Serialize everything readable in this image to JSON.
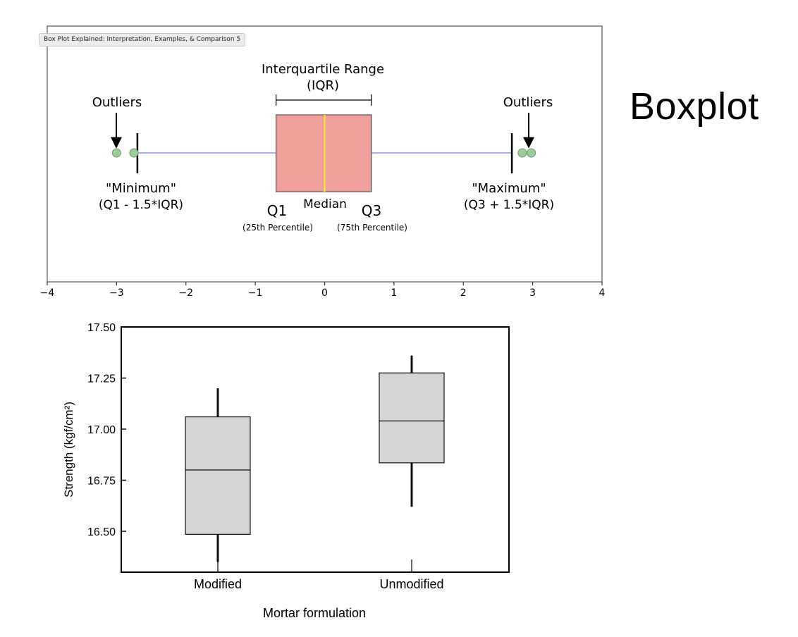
{
  "slide": {
    "title": "Boxplot"
  },
  "tooltip": {
    "text": "Box Plot Explained: Interpretation, Examples, & Comparison 5"
  },
  "chart_data": [
    {
      "type": "box",
      "title": "",
      "xlim": [
        -4,
        4
      ],
      "x_ticks": [
        "−4",
        "−3",
        "−2",
        "−1",
        "0",
        "1",
        "2",
        "3",
        "4"
      ],
      "box": {
        "whisker_low": -2.7,
        "q1": -0.7,
        "median": 0,
        "q3": 0.675,
        "whisker_high": 2.7
      },
      "outliers": [
        -3.0,
        -2.75,
        2.85,
        2.98
      ],
      "colors": {
        "box": "#f19f9b",
        "median": "#ffeb3b",
        "whisker": "#8d95e6",
        "outlier": "#9ccc9c"
      },
      "annotations": {
        "iqr_line1": "Interquartile Range",
        "iqr_line2": "(IQR)",
        "outliers_left": "Outliers",
        "outliers_right": "Outliers",
        "minimum": "\"Minimum\"",
        "minimum_formula": "(Q1 - 1.5*IQR)",
        "maximum": "\"Maximum\"",
        "maximum_formula": "(Q3 + 1.5*IQR)",
        "q1": "Q1",
        "q1_sub": "(25th Percentile)",
        "median": "Median",
        "q3": "Q3",
        "q3_sub": "(75th Percentile)"
      }
    },
    {
      "type": "box",
      "title": "",
      "xlabel": "Mortar formulation",
      "ylabel": "Strength (kgf/cm²)",
      "ylim": [
        16.3,
        17.5
      ],
      "y_ticks": [
        "16.50",
        "16.75",
        "17.00",
        "17.25",
        "17.50"
      ],
      "categories": [
        "Modified",
        "Unmodified"
      ],
      "boxes": [
        {
          "name": "Modified",
          "whisker_low": 16.35,
          "q1": 16.485,
          "median": 16.8,
          "q3": 17.06,
          "whisker_high": 17.2
        },
        {
          "name": "Unmodified",
          "whisker_low": 16.62,
          "q1": 16.835,
          "median": 17.04,
          "q3": 17.275,
          "whisker_high": 17.36
        }
      ],
      "colors": {
        "box": "#d4d5d7"
      }
    }
  ]
}
